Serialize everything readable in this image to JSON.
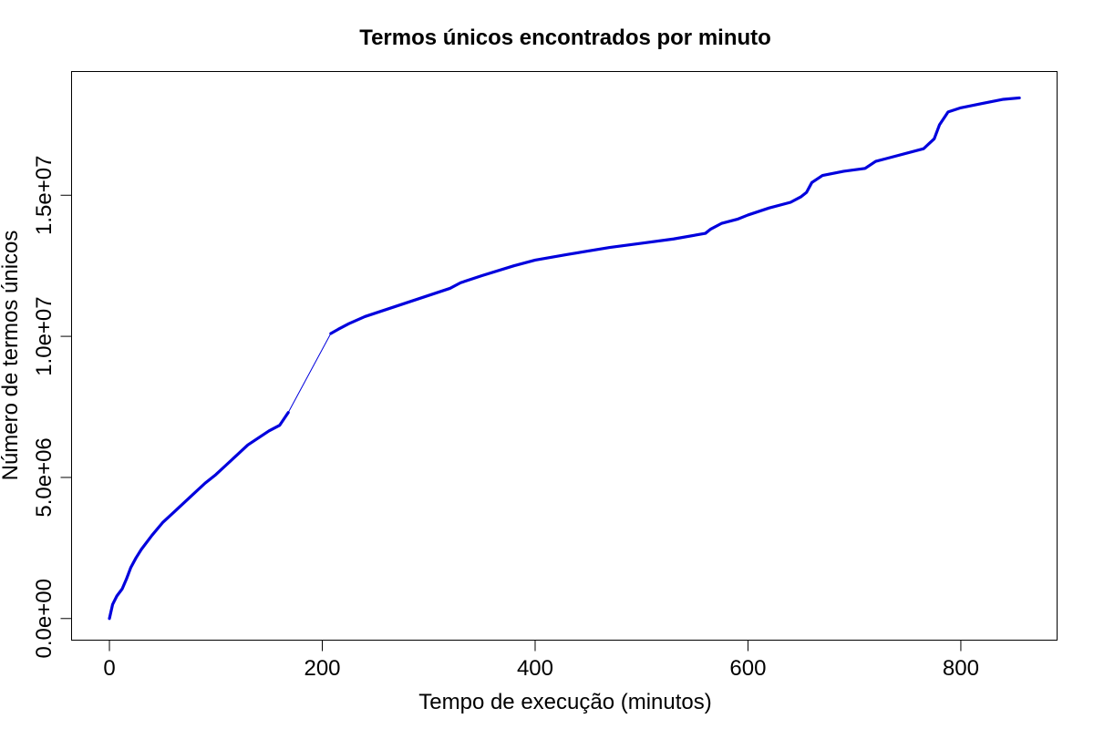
{
  "chart_data": {
    "type": "line",
    "title": "Termos únicos encontrados por minuto",
    "xlabel": "Tempo de execução (minutos)",
    "ylabel": "Número de termos únicos",
    "xlim": [
      -36,
      890
    ],
    "ylim": [
      -750000,
      19400000
    ],
    "x_ticks": [
      0,
      200,
      400,
      600,
      800
    ],
    "x_tick_labels": [
      "0",
      "200",
      "400",
      "600",
      "800"
    ],
    "y_ticks": [
      0,
      5000000,
      10000000,
      15000000
    ],
    "y_tick_labels": [
      "0.0e+00",
      "5.0e+06",
      "1.0e+07",
      "1.5e+07"
    ],
    "grid": false,
    "legend": "none",
    "colors": {
      "line": "#0000dd",
      "axis": "#000000"
    },
    "series": [
      {
        "segments": [
          {
            "style": "thick",
            "x": [
              0,
              3,
              7,
              12,
              16,
              20,
              25,
              30,
              40,
              50,
              60,
              70,
              80,
              90,
              100,
              110,
              120,
              130,
              140,
              150,
              160,
              168
            ],
            "y": [
              0,
              500000,
              800000,
              1050000,
              1400000,
              1800000,
              2150000,
              2450000,
              2950000,
              3400000,
              3750000,
              4100000,
              4450000,
              4800000,
              5100000,
              5450000,
              5800000,
              6150000,
              6400000,
              6650000,
              6850000,
              7300000
            ]
          },
          {
            "style": "thin",
            "x": [
              168,
              208
            ],
            "y": [
              7300000,
              10100000
            ]
          },
          {
            "style": "thick",
            "x": [
              208,
              215,
              225,
              240,
              260,
              280,
              300,
              320,
              330,
              350,
              380,
              400,
              430,
              470,
              500,
              530,
              560,
              565,
              575,
              590,
              600,
              620,
              640,
              650,
              655,
              660,
              670,
              690,
              710,
              720,
              730,
              765,
              775,
              780,
              788,
              800,
              820,
              840,
              855
            ],
            "y": [
              10100000,
              10250000,
              10450000,
              10700000,
              10950000,
              11200000,
              11450000,
              11700000,
              11900000,
              12150000,
              12500000,
              12700000,
              12900000,
              13150000,
              13300000,
              13450000,
              13650000,
              13800000,
              14000000,
              14150000,
              14300000,
              14550000,
              14750000,
              14950000,
              15100000,
              15450000,
              15700000,
              15850000,
              15950000,
              16200000,
              16300000,
              16650000,
              17000000,
              17500000,
              17950000,
              18100000,
              18250000,
              18400000,
              18450000
            ]
          }
        ]
      }
    ]
  }
}
